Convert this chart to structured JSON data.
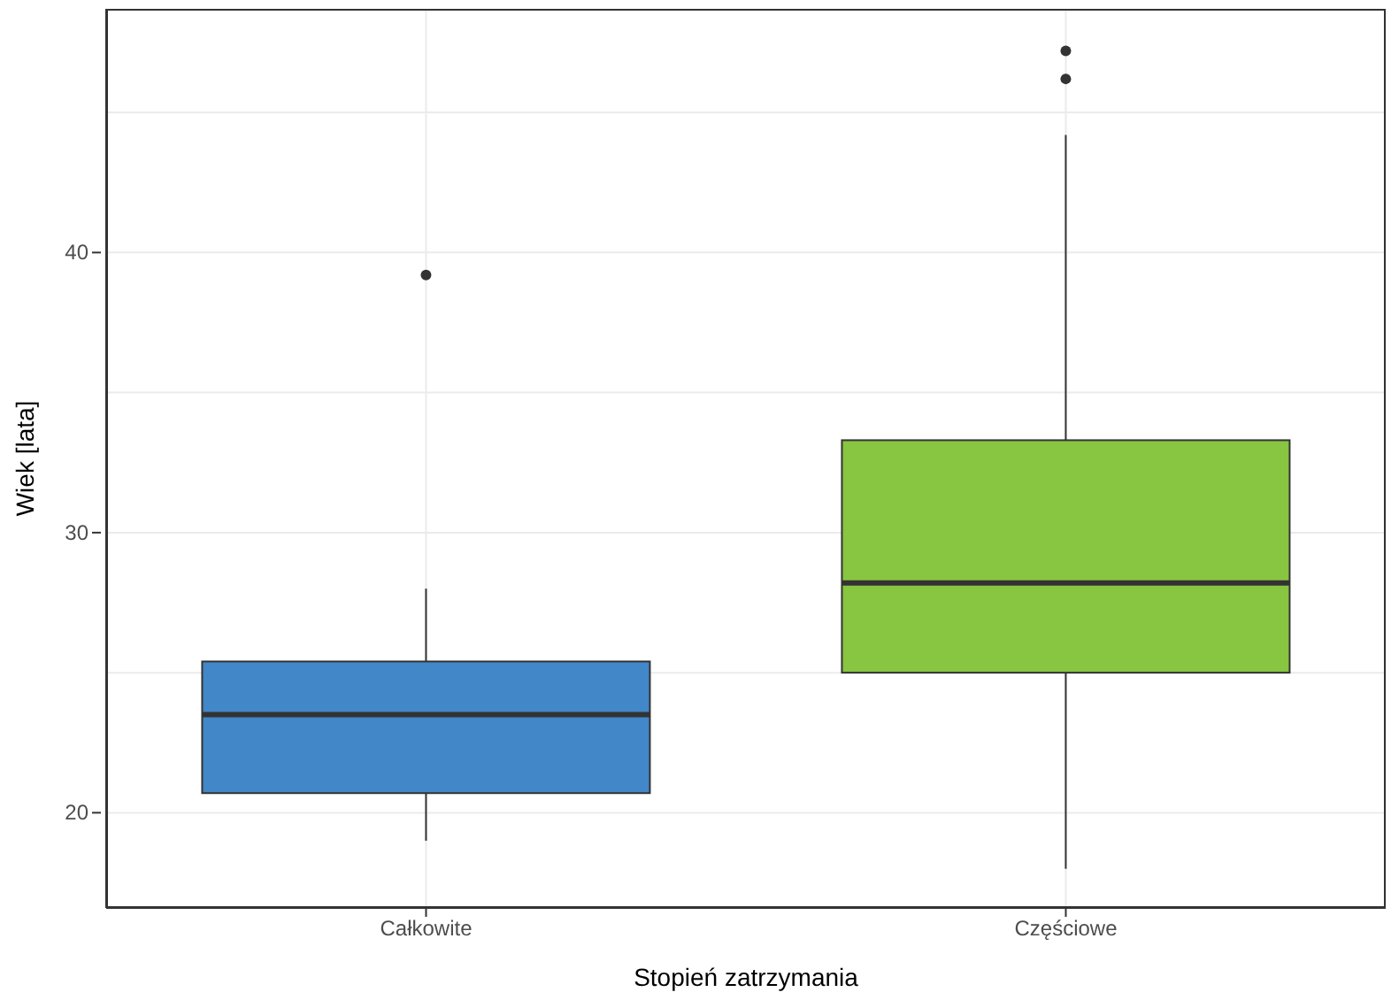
{
  "chart_data": {
    "type": "box",
    "xlabel": "Stopień zatrzymania",
    "ylabel": "Wiek [lata]",
    "categories": [
      "Całkowite",
      "Częściowe"
    ],
    "colors": [
      "#4287c8",
      "#88c540"
    ],
    "boxes": [
      {
        "low": 19,
        "q1": 20.7,
        "median": 23.5,
        "q3": 25.4,
        "high": 28,
        "outliers": [
          39.2
        ]
      },
      {
        "low": 18,
        "q1": 25,
        "median": 28.2,
        "q3": 33.3,
        "high": 44.2,
        "outliers": [
          46.2,
          47.2
        ]
      }
    ],
    "ylim": [
      16.6,
      48.7
    ],
    "yticks": [
      20,
      {
        "value": 25,
        "label": null
      },
      30,
      {
        "value": 35,
        "label": null
      },
      40,
      {
        "value": 45,
        "label": null
      }
    ],
    "grid": true
  }
}
